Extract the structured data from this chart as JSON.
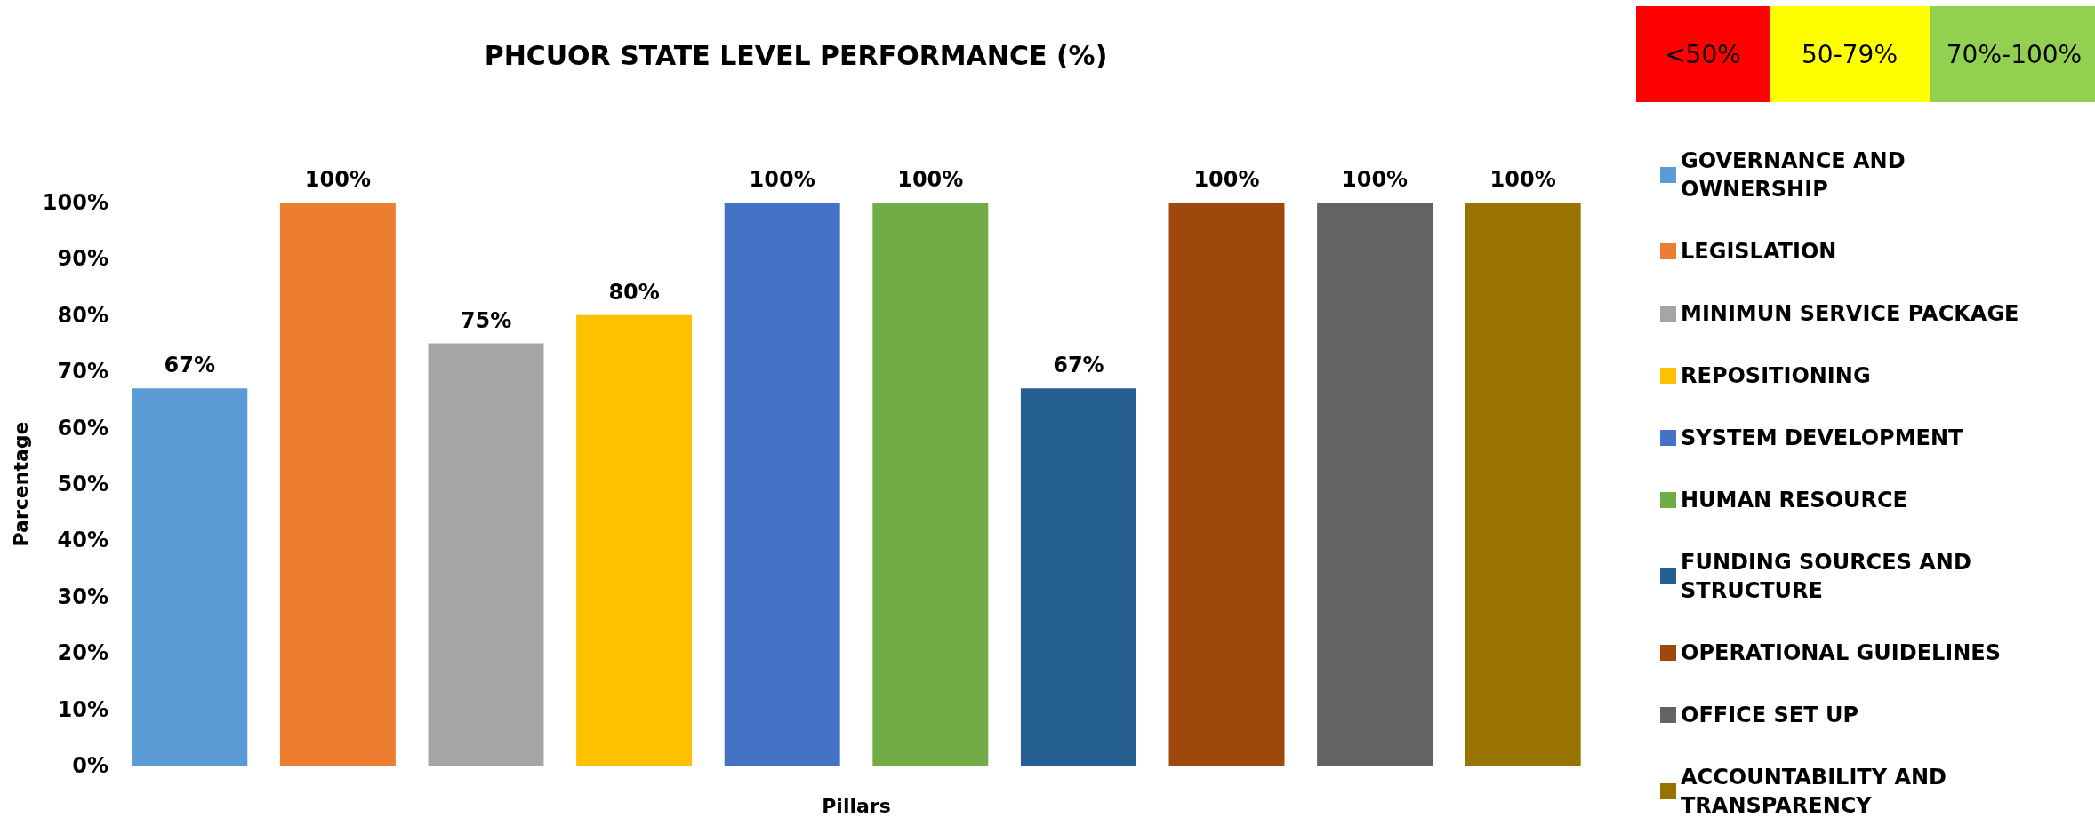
{
  "chart_data": {
    "type": "bar",
    "title": "PHCUOR STATE LEVEL PERFORMANCE (%)",
    "xlabel": "Pillars",
    "ylabel": "Parcentage",
    "annotations": [
      "<50%",
      "50-79%",
      "70%-100%"
    ],
    "categories": [
      null,
      null,
      null,
      null,
      null,
      null,
      null,
      null,
      null,
      null
    ],
    "stacked": true,
    "ylim": [
      0,
      100
    ],
    "yticks": [
      {
        "value": 0,
        "label": "0%"
      },
      {
        "value": 10,
        "label": "10%"
      },
      {
        "value": 20,
        "label": "20%"
      },
      {
        "value": 30,
        "label": "30%"
      },
      {
        "value": 40,
        "label": "40%"
      },
      {
        "value": 50,
        "label": "50%"
      },
      {
        "value": 60,
        "label": "60%"
      },
      {
        "value": 70,
        "label": "70%"
      },
      {
        "value": 80,
        "label": "80%"
      },
      {
        "value": 90,
        "label": "90%"
      },
      {
        "value": 100,
        "label": "100%"
      }
    ],
    "grid": false,
    "legend": "right",
    "series": [
      {
        "name": "GOVERNANCE AND OWNERSHIP",
        "color": "#5b9bd5",
        "values": [
          67,
          null,
          null,
          null,
          null,
          null,
          null,
          null,
          null,
          null
        ],
        "value_labels": [
          "67%",
          null,
          null,
          null,
          null,
          null,
          null,
          null,
          null,
          null
        ]
      },
      {
        "name": "LEGISLATION",
        "color": "#ed7d31",
        "values": [
          null,
          100,
          null,
          null,
          null,
          null,
          null,
          null,
          null,
          null
        ],
        "value_labels": [
          null,
          "100%",
          null,
          null,
          null,
          null,
          null,
          null,
          null,
          null
        ]
      },
      {
        "name": "MINIMUN SERVICE PACKAGE",
        "color": "#a5a5a5",
        "values": [
          null,
          null,
          75,
          null,
          null,
          null,
          null,
          null,
          null,
          null
        ],
        "value_labels": [
          null,
          null,
          "75%",
          null,
          null,
          null,
          null,
          null,
          null,
          null
        ]
      },
      {
        "name": "REPOSITIONING",
        "color": "#ffc000",
        "values": [
          null,
          null,
          null,
          80,
          null,
          null,
          null,
          null,
          null,
          null
        ],
        "value_labels": [
          null,
          null,
          null,
          "80%",
          null,
          null,
          null,
          null,
          null,
          null
        ]
      },
      {
        "name": "SYSTEM DEVELOPMENT",
        "color": "#4472c4",
        "values": [
          null,
          null,
          null,
          null,
          100,
          null,
          null,
          null,
          null,
          null
        ],
        "value_labels": [
          null,
          null,
          null,
          null,
          "100%",
          null,
          null,
          null,
          null,
          null
        ]
      },
      {
        "name": "HUMAN RESOURCE",
        "color": "#70ad47",
        "values": [
          null,
          null,
          null,
          null,
          null,
          100,
          null,
          null,
          null,
          null
        ],
        "value_labels": [
          null,
          null,
          null,
          null,
          null,
          "100%",
          null,
          null,
          null,
          null
        ]
      },
      {
        "name": "FUNDING SOURCES AND STRUCTURE",
        "color": "#255e91",
        "values": [
          null,
          null,
          null,
          null,
          null,
          null,
          67,
          null,
          null,
          null
        ],
        "value_labels": [
          null,
          null,
          null,
          null,
          null,
          null,
          "67%",
          null,
          null,
          null
        ]
      },
      {
        "name": "OPERATIONAL GUIDELINES",
        "color": "#9e480e",
        "values": [
          null,
          null,
          null,
          null,
          null,
          null,
          null,
          100,
          null,
          null
        ],
        "value_labels": [
          null,
          null,
          null,
          null,
          null,
          null,
          null,
          "100%",
          null,
          null
        ]
      },
      {
        "name": "OFFICE SET UP",
        "color": "#636363",
        "values": [
          null,
          null,
          null,
          null,
          null,
          null,
          null,
          null,
          100,
          null
        ],
        "value_labels": [
          null,
          null,
          null,
          null,
          null,
          null,
          null,
          null,
          "100%",
          null
        ]
      },
      {
        "name": "ACCOUNTABILITY AND TRANSPARENCY",
        "color": "#997300",
        "values": [
          null,
          null,
          null,
          null,
          null,
          null,
          null,
          null,
          null,
          100
        ],
        "value_labels": [
          null,
          null,
          null,
          null,
          null,
          null,
          null,
          null,
          null,
          "100%"
        ]
      }
    ]
  }
}
